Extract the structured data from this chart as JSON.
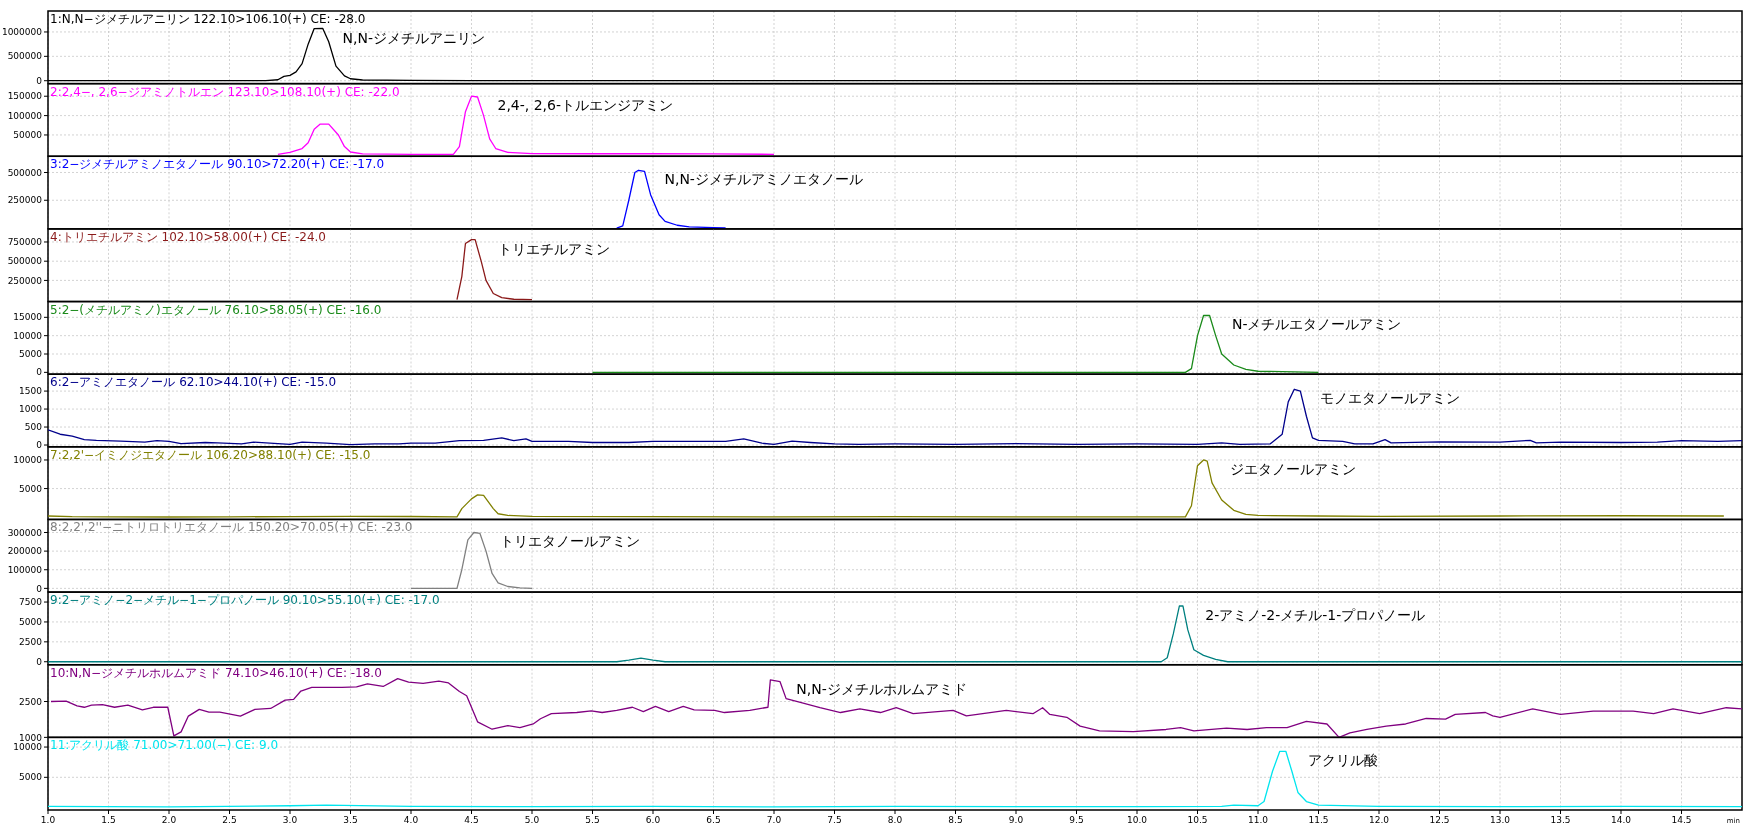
{
  "chart_data": [
    {
      "type": "line",
      "title": "1:N,N−ジメチルアニリン 122.10>106.10(+) CE: -28.0",
      "xlim": [
        1,
        15
      ],
      "xticks": [
        1,
        1.5,
        2,
        2.5,
        3,
        3.5,
        4,
        4.5,
        5,
        5.5,
        6,
        6.5,
        7,
        7.5,
        8,
        8.5,
        9,
        9.5,
        10,
        10.5,
        11,
        11.5,
        12,
        12.5,
        13,
        13.5,
        14,
        14.5
      ],
      "ylim": [
        -60000,
        1430000
      ],
      "yticks": [
        0,
        500000,
        1000000
      ],
      "grid": true,
      "tick_labels": "y",
      "series": [
        {
          "color": "#000000",
          "x": [
            1,
            1.5,
            2,
            2.5,
            2.8,
            2.9,
            2.95,
            3.0,
            3.05,
            3.1,
            3.15,
            3.2,
            3.27,
            3.32,
            3.38,
            3.45,
            3.5,
            3.6,
            4.0,
            4.5,
            5.0,
            5.5,
            6,
            7,
            8,
            9,
            10,
            11,
            12,
            13,
            14,
            15
          ],
          "values": [
            0,
            0,
            0,
            0,
            0,
            20000,
            90000,
            110000,
            180000,
            350000,
            750000,
            1070000,
            1075000,
            800000,
            300000,
            100000,
            40000,
            15000,
            5000,
            2000,
            0,
            0,
            0,
            0,
            0,
            0,
            0,
            0,
            0,
            0,
            0,
            0
          ]
        }
      ],
      "annotations": [
        {
          "text": "N,N-ジメチルアニリン",
          "x": 3.22,
          "y": 1070000
        }
      ]
    },
    {
      "type": "line",
      "title": "2:2,4−, 2,6−ジアミノトルエン 123.10>108.10(+) CE: -22.0",
      "xlim": [
        1,
        15
      ],
      "xticks": [
        1,
        1.5,
        2,
        2.5,
        3,
        3.5,
        4,
        4.5,
        5,
        5.5,
        6,
        6.5,
        7,
        7.5,
        8,
        8.5,
        9,
        9.5,
        10,
        10.5,
        11,
        11.5,
        12,
        12.5,
        13,
        13.5,
        14,
        14.5
      ],
      "ylim": [
        -5000,
        182500
      ],
      "yticks": [
        50000,
        100000,
        150000
      ],
      "grid": true,
      "tick_labels": "y",
      "series": [
        {
          "color": "#ff00ff",
          "x": [
            2.9,
            3.0,
            3.1,
            3.15,
            3.2,
            3.25,
            3.32,
            3.4,
            3.45,
            3.5,
            3.6,
            4.0,
            4.35,
            4.4,
            4.45,
            4.5,
            4.55,
            4.6,
            4.65,
            4.7,
            4.8,
            5.0,
            5.5,
            6.0,
            6.5,
            7.0
          ],
          "values": [
            0,
            5000,
            15000,
            30000,
            65000,
            78000,
            78000,
            50000,
            20000,
            6000,
            1000,
            0,
            0,
            20000,
            110000,
            150000,
            148000,
            100000,
            40000,
            15000,
            5000,
            2000,
            1500,
            1500,
            1000,
            0
          ]
        }
      ],
      "annotations": [
        {
          "text": "2,4-, 2,6-トルエンジアミン",
          "x": 4.5,
          "y": 150000
        }
      ]
    },
    {
      "type": "line",
      "title": "3:2−ジメチルアミノエタノール 90.10>72.20(+) CE: -17.0",
      "xlim": [
        1,
        15
      ],
      "xticks": [
        1,
        1.5,
        2,
        2.5,
        3,
        3.5,
        4,
        4.5,
        5,
        5.5,
        6,
        6.5,
        7,
        7.5,
        8,
        8.5,
        9,
        9.5,
        10,
        10.5,
        11,
        11.5,
        12,
        12.5,
        13,
        13.5,
        14,
        14.5
      ],
      "ylim": [
        -8000,
        646000
      ],
      "yticks": [
        250000,
        500000
      ],
      "grid": true,
      "tick_labels": "y",
      "series": [
        {
          "color": "#0000ff",
          "x": [
            5.7,
            5.75,
            5.8,
            5.85,
            5.88,
            5.93,
            5.98,
            6.05,
            6.1,
            6.2,
            6.3,
            6.5,
            6.6
          ],
          "values": [
            0,
            20000,
            250000,
            500000,
            520000,
            510000,
            300000,
            120000,
            60000,
            25000,
            10000,
            3000,
            0
          ]
        }
      ],
      "annotations": [
        {
          "text": "N,N-ジメチルアミノエタノール",
          "x": 5.88,
          "y": 520000
        }
      ]
    },
    {
      "type": "line",
      "title": "4:トリエチルアミン 102.10>58.00(+) CE: -24.0",
      "xlim": [
        1,
        15
      ],
      "xticks": [
        1,
        1.5,
        2,
        2.5,
        3,
        3.5,
        4,
        4.5,
        5,
        5.5,
        6,
        6.5,
        7,
        7.5,
        8,
        8.5,
        9,
        9.5,
        10,
        10.5,
        11,
        11.5,
        12,
        12.5,
        13,
        13.5,
        14,
        14.5
      ],
      "ylim": [
        -25000,
        920000
      ],
      "yticks": [
        250000,
        500000,
        750000
      ],
      "grid": true,
      "tick_labels": "y",
      "series": [
        {
          "color": "#8b1a1a",
          "x": [
            4.38,
            4.42,
            4.45,
            4.5,
            4.53,
            4.58,
            4.62,
            4.68,
            4.75,
            4.85,
            5.0
          ],
          "values": [
            0,
            300000,
            730000,
            780000,
            780000,
            500000,
            250000,
            80000,
            25000,
            5000,
            0
          ]
        }
      ],
      "annotations": [
        {
          "text": "トリエチルアミン",
          "x": 4.5,
          "y": 780000
        }
      ]
    },
    {
      "type": "line",
      "title": "5:2−(メチルアミノ)エタノール 76.10>58.05(+) CE: -16.0",
      "xlim": [
        1,
        15
      ],
      "xticks": [
        1,
        1.5,
        2,
        2.5,
        3,
        3.5,
        4,
        4.5,
        5,
        5.5,
        6,
        6.5,
        7,
        7.5,
        8,
        8.5,
        9,
        9.5,
        10,
        10.5,
        11,
        11.5,
        12,
        12.5,
        13,
        13.5,
        14,
        14.5
      ],
      "ylim": [
        -500,
        19300
      ],
      "yticks": [
        0,
        5000,
        10000,
        15000
      ],
      "grid": true,
      "tick_labels": "y",
      "series": [
        {
          "color": "#1a8a1a",
          "x": [
            5.5,
            6,
            7,
            8,
            9,
            10,
            10.4,
            10.45,
            10.5,
            10.55,
            10.6,
            10.65,
            10.7,
            10.8,
            10.9,
            11.0,
            11.5
          ],
          "values": [
            0,
            0,
            0,
            0,
            0,
            0,
            0,
            1000,
            10000,
            15500,
            15500,
            10000,
            5000,
            2000,
            800,
            300,
            0
          ]
        }
      ],
      "annotations": [
        {
          "text": "N-メチルエタノールアミン",
          "x": 10.57,
          "y": 15500
        }
      ]
    },
    {
      "type": "line",
      "title": "6:2−アミノエタノール 62.10>44.10(+) CE: -15.0",
      "xlim": [
        1,
        15
      ],
      "xticks": [
        1,
        1.5,
        2,
        2.5,
        3,
        3.5,
        4,
        4.5,
        5,
        5.5,
        6,
        6.5,
        7,
        7.5,
        8,
        8.5,
        9,
        9.5,
        10,
        10.5,
        11,
        11.5,
        12,
        12.5,
        13,
        13.5,
        14,
        14.5
      ],
      "ylim": [
        -50,
        1970
      ],
      "yticks": [
        0,
        500,
        1000,
        1500
      ],
      "grid": true,
      "tick_labels": "y",
      "series": [
        {
          "color": "#00008b",
          "x": [
            1.0,
            1.1,
            1.2,
            1.3,
            1.4,
            1.6,
            1.8,
            1.9,
            2.0,
            2.1,
            2.3,
            2.4,
            2.6,
            2.7,
            2.9,
            3.0,
            3.1,
            3.3,
            3.5,
            3.7,
            3.9,
            4.0,
            4.2,
            4.4,
            4.6,
            4.75,
            4.85,
            4.95,
            5.0,
            5.3,
            5.5,
            5.8,
            6.0,
            6.2,
            6.4,
            6.6,
            6.75,
            6.9,
            7.0,
            7.15,
            7.3,
            7.5,
            7.7,
            8.0,
            8.5,
            9.0,
            9.5,
            10.0,
            10.5,
            10.7,
            10.85,
            11.1,
            11.2,
            11.25,
            11.3,
            11.35,
            11.4,
            11.45,
            11.5,
            11.7,
            11.8,
            11.95,
            12.05,
            12.1,
            12.5,
            13.0,
            13.25,
            13.3,
            13.5,
            14.0,
            14.3,
            14.5,
            14.8,
            15.0
          ],
          "values": [
            420,
            300,
            250,
            150,
            130,
            110,
            80,
            120,
            100,
            40,
            70,
            60,
            30,
            80,
            40,
            20,
            80,
            50,
            10,
            30,
            30,
            50,
            50,
            120,
            130,
            200,
            120,
            170,
            100,
            100,
            70,
            70,
            100,
            100,
            100,
            100,
            170,
            50,
            20,
            110,
            70,
            30,
            20,
            30,
            20,
            40,
            20,
            30,
            20,
            60,
            20,
            30,
            300,
            1200,
            1550,
            1500,
            800,
            200,
            130,
            100,
            30,
            30,
            150,
            60,
            90,
            80,
            130,
            60,
            80,
            70,
            80,
            120,
            100,
            120
          ]
        }
      ],
      "annotations": [
        {
          "text": "モノエタノールアミン",
          "x": 11.3,
          "y": 1550
        }
      ]
    },
    {
      "type": "line",
      "title": "7:2,2'−イミノジエタノール 106.20>88.10(+) CE: -15.0",
      "xlim": [
        1,
        15
      ],
      "xticks": [
        1,
        1.5,
        2,
        2.5,
        3,
        3.5,
        4,
        4.5,
        5,
        5.5,
        6,
        6.5,
        7,
        7.5,
        8,
        8.5,
        9,
        9.5,
        10,
        10.5,
        11,
        11.5,
        12,
        12.5,
        13,
        13.5,
        14,
        14.5
      ],
      "ylim": [
        -400,
        12300
      ],
      "yticks": [
        5000,
        10000
      ],
      "grid": true,
      "tick_labels": "y",
      "series": [
        {
          "color": "#808000",
          "x": [
            1.0,
            1.2,
            1.5,
            2.0,
            2.5,
            3.0,
            3.5,
            4.0,
            4.38,
            4.42,
            4.5,
            4.55,
            4.6,
            4.68,
            4.72,
            4.8,
            5.0,
            6.0,
            7.0,
            8.0,
            9.0,
            10.0,
            10.4,
            10.45,
            10.5,
            10.55,
            10.58,
            10.62,
            10.7,
            10.8,
            10.9,
            11.0,
            11.5,
            12.0,
            13.0,
            14.0,
            14.85
          ],
          "values": [
            200,
            80,
            50,
            30,
            60,
            100,
            150,
            120,
            60,
            1500,
            3200,
            3900,
            3800,
            1500,
            600,
            300,
            150,
            100,
            50,
            80,
            60,
            50,
            50,
            2000,
            9000,
            10000,
            9800,
            6000,
            3000,
            1200,
            500,
            300,
            200,
            150,
            200,
            250,
            200
          ]
        }
      ],
      "annotations": [
        {
          "text": "ジエタノールアミン",
          "x": 10.55,
          "y": 10000
        }
      ]
    },
    {
      "type": "line",
      "title": "8:2,2',2''−ニトリロトリエタノール 150.20>70.05(+) CE: -23.0",
      "xlim": [
        1,
        15
      ],
      "xticks": [
        1,
        1.5,
        2,
        2.5,
        3,
        3.5,
        4,
        4.5,
        5,
        5.5,
        6,
        6.5,
        7,
        7.5,
        8,
        8.5,
        9,
        9.5,
        10,
        10.5,
        11,
        11.5,
        12,
        12.5,
        13,
        13.5,
        14,
        14.5
      ],
      "ylim": [
        -20000,
        370000
      ],
      "yticks": [
        0,
        100000,
        200000,
        300000
      ],
      "grid": true,
      "tick_labels": "y",
      "series": [
        {
          "color": "#808080",
          "x": [
            4.0,
            4.38,
            4.42,
            4.47,
            4.52,
            4.57,
            4.62,
            4.67,
            4.72,
            4.8,
            4.9,
            5.0
          ],
          "values": [
            0,
            0,
            100000,
            260000,
            300000,
            295000,
            200000,
            80000,
            30000,
            10000,
            3000,
            0
          ]
        }
      ],
      "annotations": [
        {
          "text": "トリエタノールアミン",
          "x": 4.52,
          "y": 300000
        }
      ]
    },
    {
      "type": "line",
      "title": "9:2−アミノ−2−メチル−1−プロパノール 90.10>55.10(+) CE: -17.0",
      "xlim": [
        1,
        15
      ],
      "xticks": [
        1,
        1.5,
        2,
        2.5,
        3,
        3.5,
        4,
        4.5,
        5,
        5.5,
        6,
        6.5,
        7,
        7.5,
        8,
        8.5,
        9,
        9.5,
        10,
        10.5,
        11,
        11.5,
        12,
        12.5,
        13,
        13.5,
        14,
        14.5
      ],
      "ylim": [
        -375,
        8750
      ],
      "yticks": [
        0,
        2500,
        5000,
        7500
      ],
      "grid": true,
      "tick_labels": "y",
      "series": [
        {
          "color": "#008080",
          "x": [
            1,
            3,
            5,
            5.7,
            5.8,
            5.9,
            6.0,
            6.1,
            8,
            10.2,
            10.25,
            10.3,
            10.35,
            10.38,
            10.42,
            10.47,
            10.55,
            10.65,
            10.75,
            12,
            15
          ],
          "values": [
            0,
            0,
            0,
            0,
            200,
            450,
            200,
            0,
            0,
            0,
            500,
            3500,
            7000,
            7000,
            4000,
            1500,
            800,
            300,
            0,
            0,
            0
          ]
        }
      ],
      "annotations": [
        {
          "text": "2-アミノ-2-メチル-1-プロパノール",
          "x": 10.35,
          "y": 7000
        }
      ]
    },
    {
      "type": "line",
      "title": "10:N,N−ジメチルホルムアミド 74.10>46.10(+) CE: -18.0",
      "xlim": [
        1,
        15
      ],
      "xticks": [
        1,
        1.5,
        2,
        2.5,
        3,
        3.5,
        4,
        4.5,
        5,
        5.5,
        6,
        6.5,
        7,
        7.5,
        8,
        8.5,
        9,
        9.5,
        10,
        10.5,
        11,
        11.5,
        12,
        12.5,
        13,
        13.5,
        14,
        14.5
      ],
      "ylim": [
        1000,
        4040
      ],
      "yticks": [
        1000,
        2500
      ],
      "grid": true,
      "tick_labels": "y",
      "series": [
        {
          "color": "#800080",
          "x": [
            1.025,
            1.15,
            1.24,
            1.3,
            1.36,
            1.45,
            1.55,
            1.66,
            1.78,
            1.87,
            1.99,
            2.04,
            2.1,
            2.16,
            2.25,
            2.33,
            2.42,
            2.59,
            2.71,
            2.84,
            2.96,
            3.03,
            3.09,
            3.18,
            3.3,
            3.43,
            3.55,
            3.64,
            3.77,
            3.89,
            3.98,
            4.1,
            4.23,
            4.31,
            4.4,
            4.46,
            4.55,
            4.67,
            4.8,
            4.9,
            5.01,
            5.07,
            5.16,
            5.37,
            5.49,
            5.58,
            5.7,
            5.83,
            5.92,
            6.02,
            6.13,
            6.25,
            6.34,
            6.51,
            6.59,
            6.8,
            6.95,
            6.97,
            7.05,
            7.1,
            7.21,
            7.38,
            7.55,
            7.71,
            7.88,
            8.01,
            8.15,
            8.48,
            8.59,
            8.92,
            9.14,
            9.22,
            9.28,
            9.42,
            9.53,
            9.69,
            9.97,
            10.24,
            10.36,
            10.47,
            10.74,
            10.91,
            11.07,
            11.24,
            11.4,
            11.57,
            11.67,
            11.76,
            11.9,
            12.06,
            12.22,
            12.39,
            12.55,
            12.63,
            12.88,
            12.94,
            13.0,
            13.27,
            13.5,
            13.77,
            14.1,
            14.27,
            14.43,
            14.65,
            14.87,
            15.0
          ],
          "values": [
            2500,
            2520,
            2320,
            2260,
            2350,
            2370,
            2260,
            2350,
            2150,
            2260,
            2260,
            1060,
            1230,
            1890,
            2170,
            2060,
            2060,
            1890,
            2170,
            2210,
            2560,
            2590,
            2940,
            3090,
            3090,
            3090,
            3110,
            3240,
            3130,
            3460,
            3310,
            3260,
            3350,
            3280,
            2920,
            2740,
            1650,
            1340,
            1490,
            1410,
            1560,
            1780,
            1990,
            2040,
            2110,
            2040,
            2130,
            2260,
            2080,
            2300,
            2080,
            2300,
            2150,
            2130,
            2040,
            2130,
            2260,
            3410,
            3330,
            2620,
            2470,
            2240,
            2040,
            2190,
            2040,
            2240,
            1990,
            2130,
            1900,
            2130,
            1990,
            2240,
            1960,
            1840,
            1470,
            1270,
            1240,
            1330,
            1410,
            1270,
            1390,
            1330,
            1410,
            1410,
            1670,
            1560,
            1000,
            1190,
            1330,
            1470,
            1560,
            1790,
            1760,
            1960,
            2040,
            1900,
            1840,
            2190,
            1960,
            2100,
            2100,
            1990,
            2190,
            1990,
            2240,
            2190
          ]
        }
      ],
      "annotations": [
        {
          "text": "N,N-ジメチルホルムアミド",
          "x": 6.97,
          "y": 3410
        }
      ]
    },
    {
      "type": "line",
      "title": "11:アクリル酸 71.00>71.00(−) CE: 9.0",
      "xlabel": "min",
      "xlim": [
        1,
        15
      ],
      "xticks": [
        {
          "value": 1,
          "label": "1.0"
        },
        {
          "value": 1.5,
          "label": "1.5"
        },
        {
          "value": 2,
          "label": "2.0"
        },
        {
          "value": 2.5,
          "label": "2.5"
        },
        {
          "value": 3,
          "label": "3.0"
        },
        {
          "value": 3.5,
          "label": "3.5"
        },
        {
          "value": 4,
          "label": "4.0"
        },
        {
          "value": 4.5,
          "label": "4.5"
        },
        {
          "value": 5,
          "label": "5.0"
        },
        {
          "value": 5.5,
          "label": "5.5"
        },
        {
          "value": 6,
          "label": "6.0"
        },
        {
          "value": 6.5,
          "label": "6.5"
        },
        {
          "value": 7,
          "label": "7.0"
        },
        {
          "value": 7.5,
          "label": "7.5"
        },
        {
          "value": 8,
          "label": "8.0"
        },
        {
          "value": 8.5,
          "label": "8.5"
        },
        {
          "value": 9,
          "label": "9.0"
        },
        {
          "value": 9.5,
          "label": "9.5"
        },
        {
          "value": 10,
          "label": "10.0"
        },
        {
          "value": 10.5,
          "label": "10.5"
        },
        {
          "value": 11,
          "label": "11.0"
        },
        {
          "value": 11.5,
          "label": "11.5"
        },
        {
          "value": 12,
          "label": "12.0"
        },
        {
          "value": 12.5,
          "label": "12.5"
        },
        {
          "value": 13,
          "label": "13.0"
        },
        {
          "value": 13.5,
          "label": "13.5"
        },
        {
          "value": 14,
          "label": "14.0"
        },
        {
          "value": 14.5,
          "label": "14.5"
        }
      ],
      "ylim": [
        -400,
        11600
      ],
      "yticks": [
        5000,
        10000
      ],
      "grid": true,
      "series": [
        {
          "color": "#00e5ee",
          "x": [
            1.0,
            2.0,
            3.0,
            3.3,
            4.0,
            5.0,
            6.0,
            7.0,
            8.0,
            9.0,
            10.0,
            10.7,
            10.8,
            11.0,
            11.05,
            11.12,
            11.18,
            11.23,
            11.28,
            11.33,
            11.4,
            11.5,
            12.0,
            13.0,
            14.0,
            15.0
          ],
          "values": [
            200,
            100,
            300,
            400,
            200,
            150,
            200,
            100,
            200,
            150,
            150,
            200,
            400,
            300,
            1000,
            6000,
            9300,
            9300,
            6000,
            2500,
            1000,
            400,
            200,
            150,
            200,
            150
          ]
        }
      ],
      "annotations": [
        {
          "text": "アクリル酸",
          "x": 11.2,
          "y": 9300
        }
      ]
    }
  ]
}
